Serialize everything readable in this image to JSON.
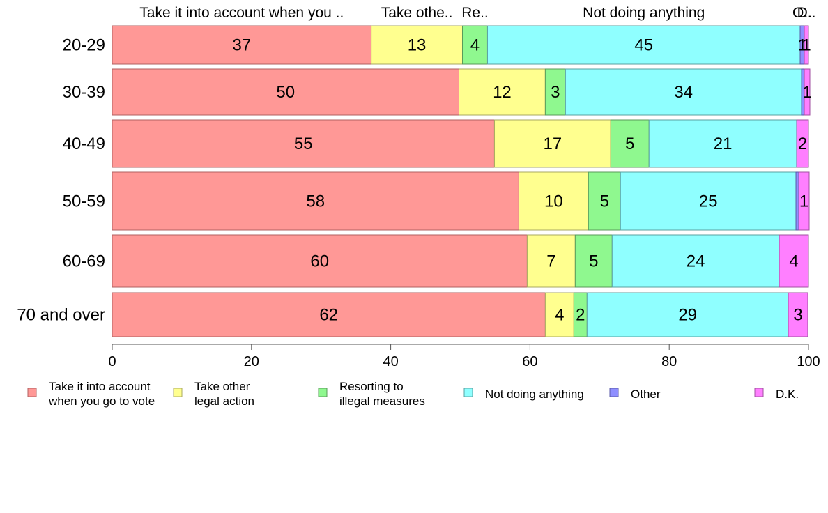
{
  "chart_data": {
    "type": "bar",
    "orientation": "horizontal",
    "stacked": true,
    "categories": [
      "20-29",
      "30-39",
      "40-49",
      "50-59",
      "60-69",
      "70 and over"
    ],
    "series": [
      {
        "name": "Take it into account when you go to vote",
        "legend_lines": [
          "Take it into account",
          "when you go to vote"
        ],
        "top_label": "Take it into account when you ..",
        "color": "#ff9896",
        "values": [
          37.2,
          49.8,
          54.9,
          58.4,
          59.6,
          62.2
        ],
        "labels": [
          "37",
          "50",
          "55",
          "58",
          "60",
          "62"
        ]
      },
      {
        "name": "Take other legal action",
        "legend_lines": [
          "Take other",
          "legal action"
        ],
        "top_label": "Take othe..",
        "color": "#ffff8f",
        "values": [
          13.1,
          12.4,
          16.7,
          10.0,
          6.9,
          4.1
        ],
        "labels": [
          "13",
          "12",
          "17",
          "10",
          "7",
          "4"
        ]
      },
      {
        "name": "Resorting to illegal measures",
        "legend_lines": [
          "Resorting to",
          "illegal measures"
        ],
        "top_label": "Re..",
        "color": "#8ff88f",
        "values": [
          3.6,
          2.9,
          5.5,
          4.6,
          5.3,
          1.9
        ],
        "labels": [
          "4",
          "3",
          "5",
          "5",
          "5",
          "2"
        ]
      },
      {
        "name": "Not doing anything",
        "legend_lines": [
          "Not doing anything"
        ],
        "top_label": "Not doing anything",
        "color": "#8fffff",
        "values": [
          44.9,
          33.9,
          21.2,
          25.2,
          24.0,
          28.9
        ],
        "labels": [
          "45",
          "34",
          "21",
          "25",
          "24",
          "29"
        ]
      },
      {
        "name": "Other",
        "legend_lines": [
          "Other"
        ],
        "top_label": "O..",
        "color": "#8f8fff",
        "values": [
          0.6,
          0.4,
          0.0,
          0.4,
          0.0,
          0.0
        ],
        "labels": [
          "1",
          "",
          "",
          "",
          "",
          ""
        ]
      },
      {
        "name": "D.K.",
        "legend_lines": [
          "D.K."
        ],
        "top_label": "D..",
        "color": "#ff7fff",
        "values": [
          0.6,
          0.8,
          1.7,
          1.5,
          4.2,
          2.8
        ],
        "labels": [
          "1",
          "1",
          "2",
          "1",
          "4",
          "3"
        ]
      }
    ],
    "xlim": [
      0,
      100
    ],
    "x_ticks": [
      0,
      20,
      40,
      60,
      80,
      100
    ],
    "title": "",
    "xlabel": "",
    "ylabel": "",
    "grid": false,
    "legend_position": "bottom"
  }
}
